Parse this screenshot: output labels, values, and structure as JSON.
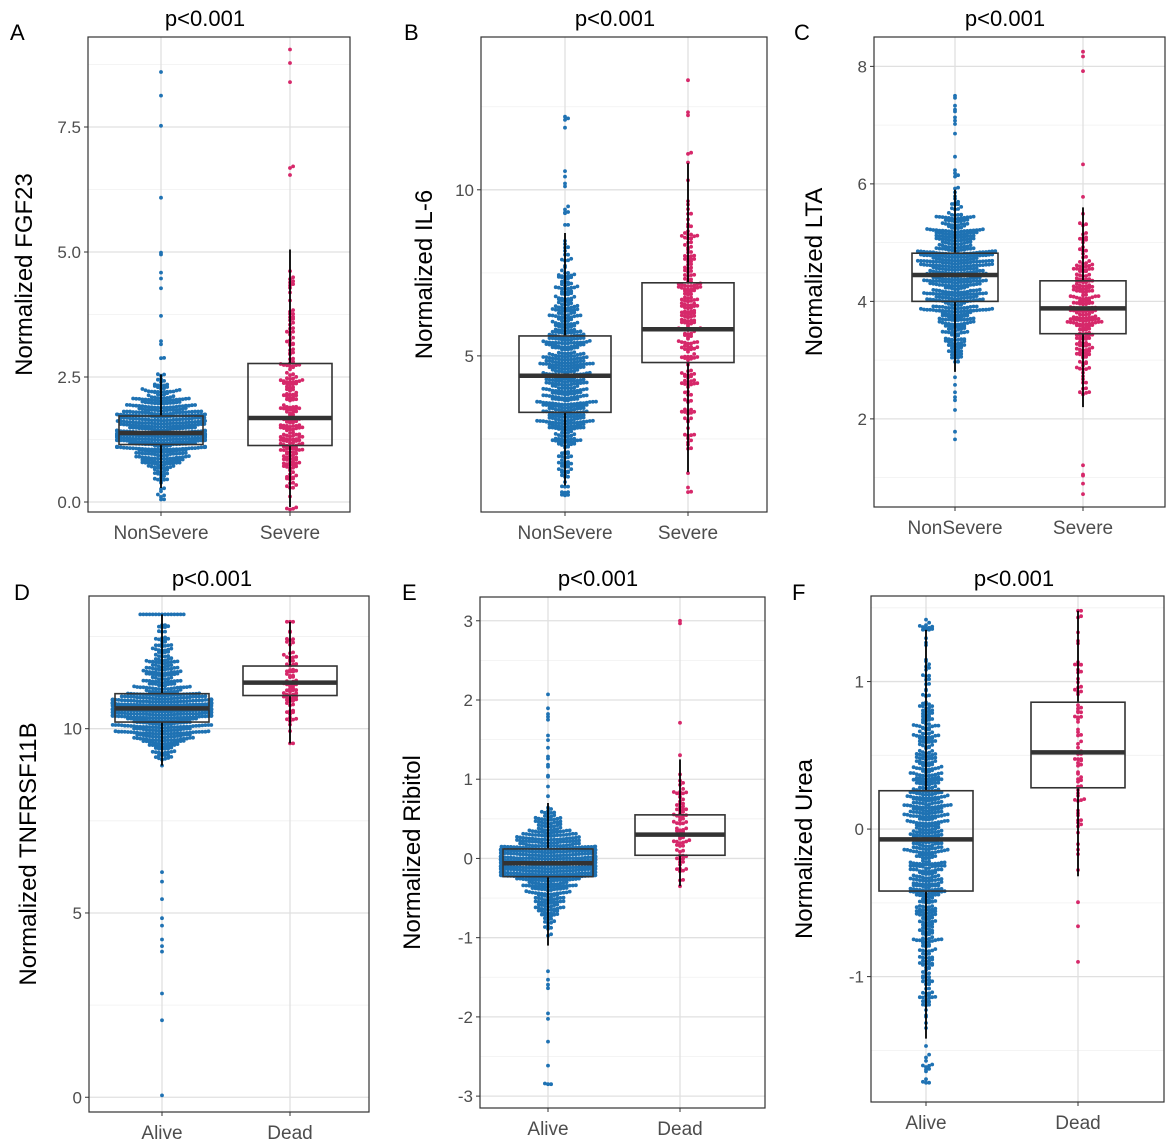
{
  "colors": {
    "group1": "#1f72b3",
    "group2": "#d6286a",
    "box": "#333333"
  },
  "chart_data": [
    {
      "id": "A",
      "type": "box+beeswarm",
      "letter": "A",
      "title": "p<0.001",
      "ylabel": "Normalized FGF23",
      "xlabel": "",
      "ylim": [
        -0.2,
        9.3
      ],
      "yticks": [
        0,
        2.5,
        5.0,
        7.5
      ],
      "ytick_labels": [
        "0.0",
        "2.5",
        "5.0",
        "7.5"
      ],
      "categories": [
        "NonSevere",
        "Severe"
      ],
      "groups": [
        {
          "name": "NonSevere",
          "color_key": "group1",
          "n": 620,
          "q1": 1.15,
          "median": 1.38,
          "q3": 1.72,
          "whisker_low": 0.28,
          "whisker_high": 2.55,
          "min": 0.05,
          "max": 8.6,
          "spread": 0.15
        },
        {
          "name": "Severe",
          "color_key": "group2",
          "n": 230,
          "q1": 1.13,
          "median": 1.68,
          "q3": 2.77,
          "whisker_low": -0.1,
          "whisker_high": 5.05,
          "min": -0.15,
          "max": 9.05,
          "spread": 0.22
        }
      ]
    },
    {
      "id": "B",
      "type": "box+beeswarm",
      "letter": "B",
      "title": "p<0.001",
      "ylabel": "Normalized IL-6",
      "xlabel": "",
      "ylim": [
        0.3,
        14.6
      ],
      "yticks": [
        5,
        10
      ],
      "ytick_labels": [
        "5",
        "10"
      ],
      "categories": [
        "NonSevere",
        "Severe"
      ],
      "groups": [
        {
          "name": "NonSevere",
          "color_key": "group1",
          "n": 620,
          "q1": 3.3,
          "median": 4.4,
          "q3": 5.6,
          "whisker_low": 1.1,
          "whisker_high": 8.7,
          "min": 0.8,
          "max": 12.2,
          "spread": 0.9
        },
        {
          "name": "Severe",
          "color_key": "group2",
          "n": 230,
          "q1": 4.8,
          "median": 5.8,
          "q3": 7.2,
          "whisker_low": 1.5,
          "whisker_high": 10.8,
          "min": 0.9,
          "max": 13.3,
          "spread": 1.3
        }
      ]
    },
    {
      "id": "C",
      "type": "box+beeswarm",
      "letter": "C",
      "title": "p<0.001",
      "ylabel": "Normalized LTA",
      "xlabel": "",
      "ylim": [
        0.5,
        8.5
      ],
      "yticks": [
        2,
        4,
        6,
        8
      ],
      "ytick_labels": [
        "2",
        "4",
        "6",
        "8"
      ],
      "categories": [
        "NonSevere",
        "Severe"
      ],
      "groups": [
        {
          "name": "NonSevere",
          "color_key": "group1",
          "n": 620,
          "q1": 4.0,
          "median": 4.45,
          "q3": 4.82,
          "whisker_low": 2.8,
          "whisker_high": 5.9,
          "min": 1.65,
          "max": 7.5,
          "spread": 0.55
        },
        {
          "name": "Severe",
          "color_key": "group2",
          "n": 230,
          "q1": 3.45,
          "median": 3.88,
          "q3": 4.35,
          "whisker_low": 2.2,
          "whisker_high": 5.6,
          "min": 0.72,
          "max": 8.25,
          "spread": 0.6
        }
      ]
    },
    {
      "id": "D",
      "type": "box+beeswarm",
      "letter": "D",
      "title": "p<0.001",
      "ylabel": "Normalized TNFRSF11B",
      "xlabel": "",
      "ylim": [
        -0.4,
        13.6
      ],
      "yticks": [
        0,
        5,
        10
      ],
      "ytick_labels": [
        "0",
        "5",
        "10"
      ],
      "categories": [
        "Alive",
        "Dead"
      ],
      "groups": [
        {
          "name": "Alive",
          "color_key": "group1",
          "n": 700,
          "q1": 10.18,
          "median": 10.55,
          "q3": 10.95,
          "whisker_low": 9.0,
          "whisker_high": 13.1,
          "min": 0.05,
          "max": 13.1,
          "spread": 0.55
        },
        {
          "name": "Dead",
          "color_key": "group2",
          "n": 80,
          "q1": 10.9,
          "median": 11.25,
          "q3": 11.7,
          "whisker_low": 9.6,
          "whisker_high": 12.9,
          "min": 9.6,
          "max": 12.9,
          "spread": 0.5
        }
      ]
    },
    {
      "id": "E",
      "type": "box+beeswarm",
      "letter": "E",
      "title": "p<0.001",
      "ylabel": "Normalized Ribitol",
      "xlabel": "",
      "ylim": [
        -3.15,
        3.3
      ],
      "yticks": [
        -3,
        -2,
        -1,
        0,
        1,
        2,
        3
      ],
      "ytick_labels": [
        "-3",
        "-2",
        "-1",
        "0",
        "1",
        "2",
        "3"
      ],
      "categories": [
        "Alive",
        "Dead"
      ],
      "groups": [
        {
          "name": "Alive",
          "color_key": "group1",
          "n": 700,
          "q1": -0.23,
          "median": -0.06,
          "q3": 0.12,
          "whisker_low": -1.1,
          "whisker_high": 0.7,
          "min": -2.85,
          "max": 2.07,
          "spread": 0.3
        },
        {
          "name": "Dead",
          "color_key": "group2",
          "n": 80,
          "q1": 0.04,
          "median": 0.3,
          "q3": 0.55,
          "whisker_low": -0.35,
          "whisker_high": 1.25,
          "min": -0.35,
          "max": 3.0,
          "spread": 0.3
        }
      ]
    },
    {
      "id": "F",
      "type": "box+beeswarm",
      "letter": "F",
      "title": "p<0.001",
      "ylabel": "Normalized Urea",
      "xlabel": "",
      "ylim": [
        -1.85,
        1.58
      ],
      "yticks": [
        -1,
        0,
        1
      ],
      "ytick_labels": [
        "-1",
        "0",
        "1"
      ],
      "categories": [
        "Alive",
        "Dead"
      ],
      "groups": [
        {
          "name": "Alive",
          "color_key": "group1",
          "n": 700,
          "q1": -0.42,
          "median": -0.07,
          "q3": 0.26,
          "whisker_low": -1.42,
          "whisker_high": 1.35,
          "min": -1.72,
          "max": 1.42,
          "spread": 0.45
        },
        {
          "name": "Dead",
          "color_key": "group2",
          "n": 80,
          "q1": 0.28,
          "median": 0.52,
          "q3": 0.86,
          "whisker_low": -0.32,
          "whisker_high": 1.48,
          "min": -0.9,
          "max": 1.48,
          "spread": 0.4
        }
      ]
    }
  ]
}
